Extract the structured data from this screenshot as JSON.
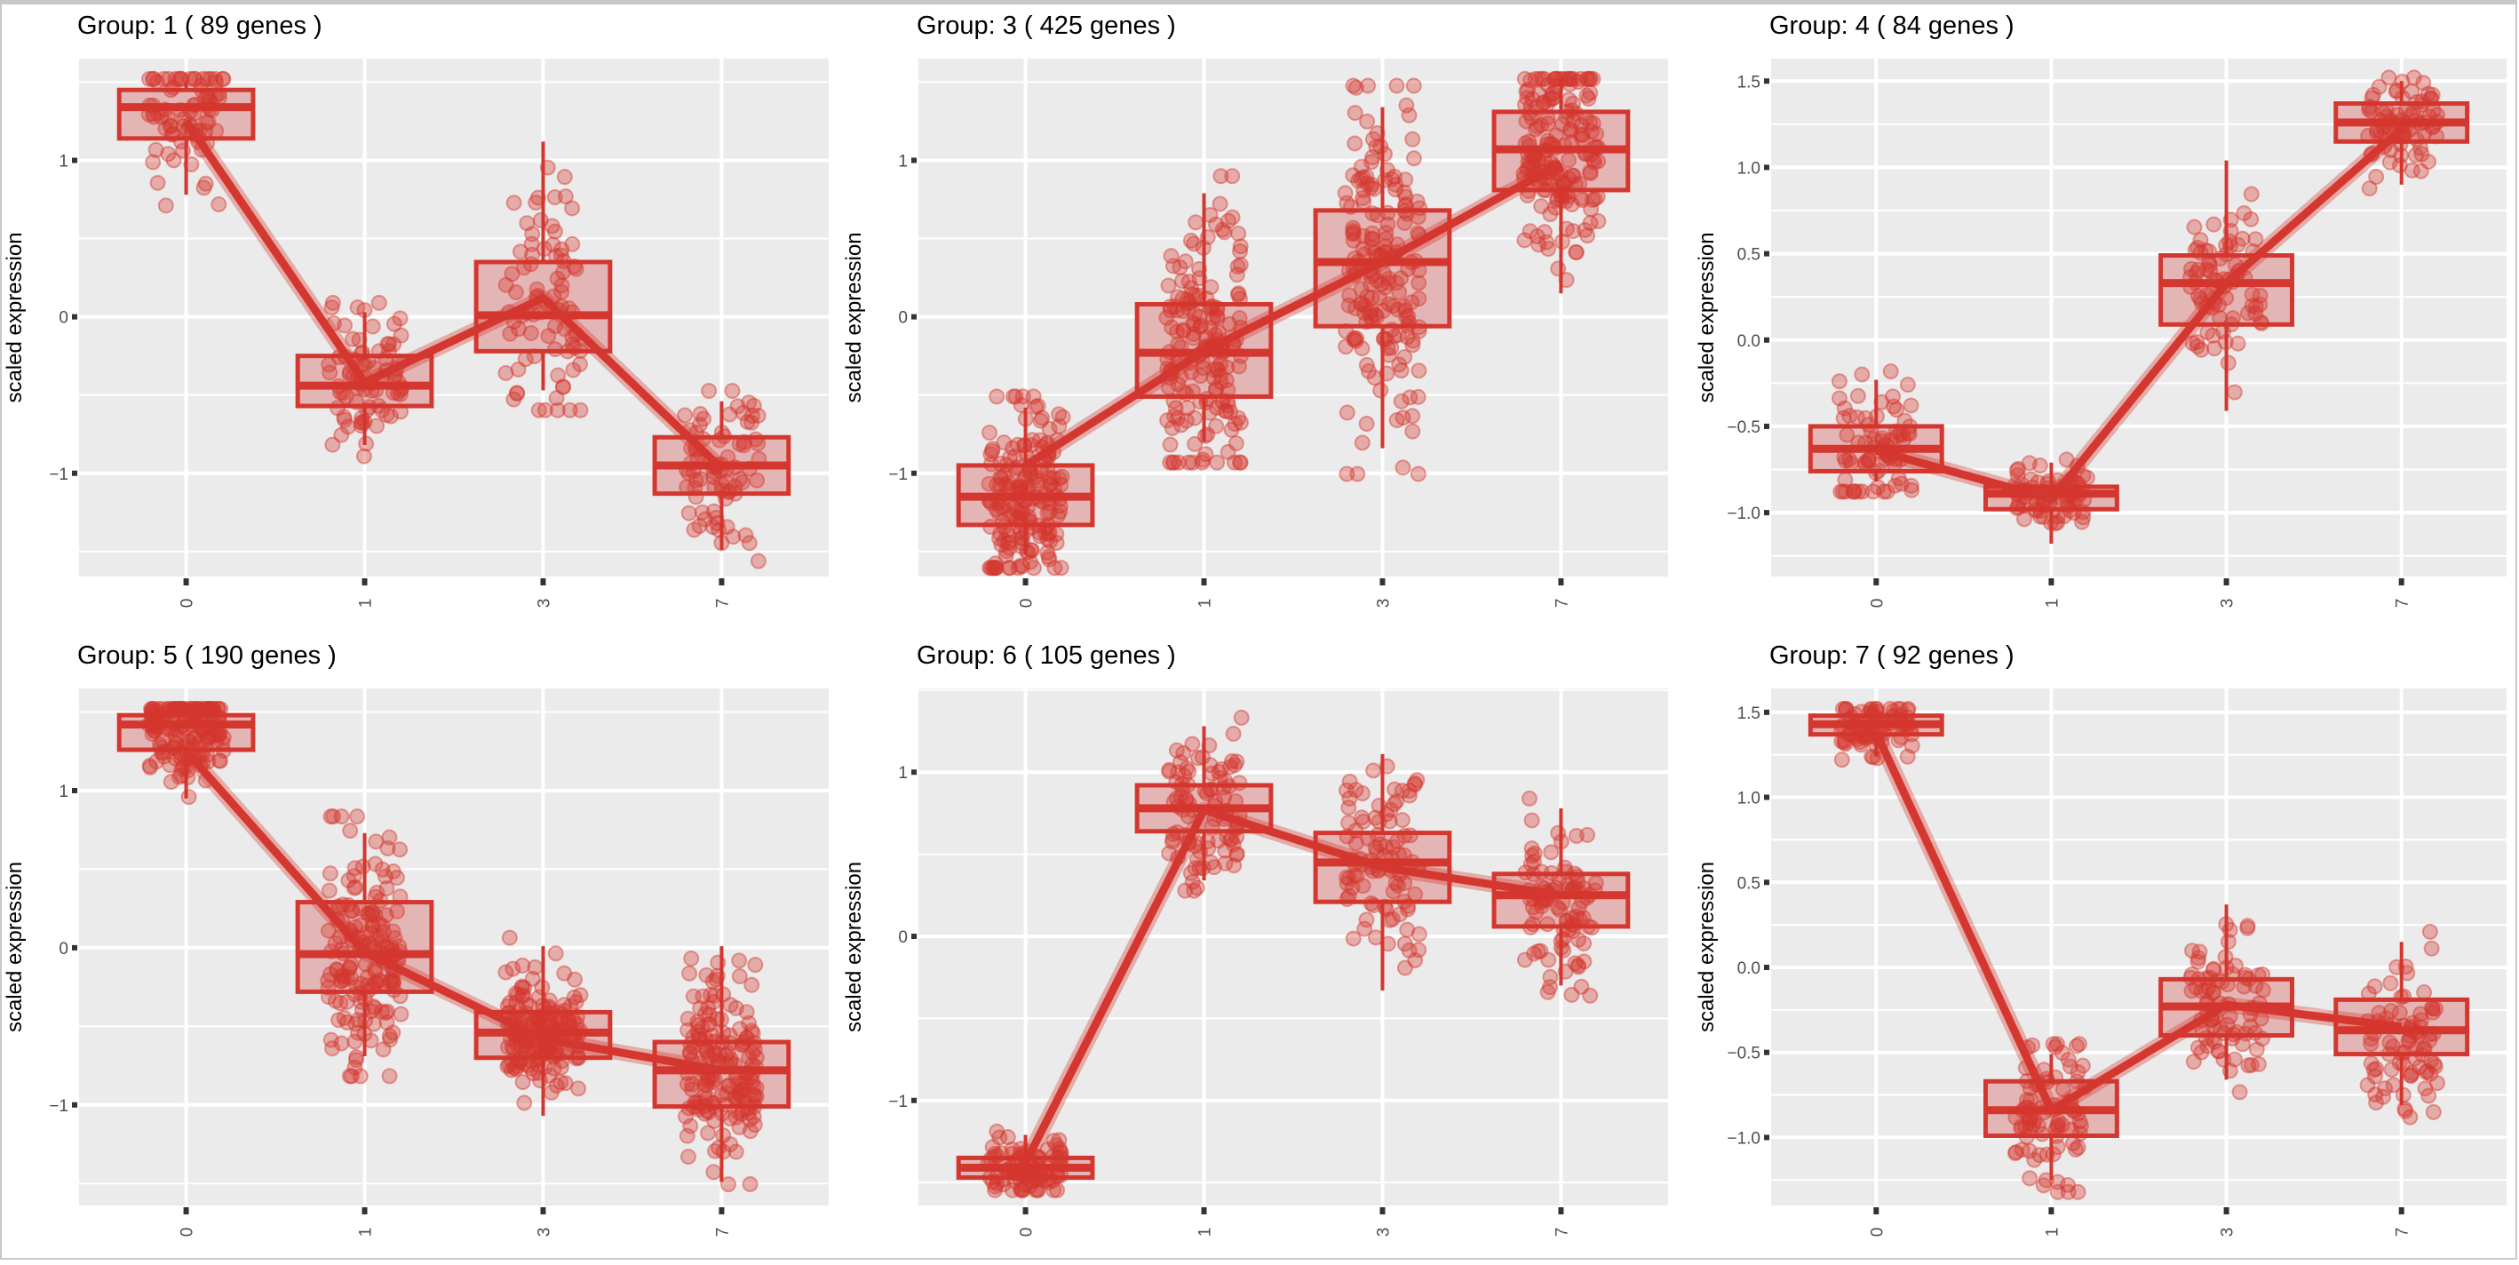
{
  "chart_data": [
    {
      "type": "boxplot",
      "title": "Group: 1 ( 89  genes )",
      "group": "1",
      "n_genes": 89,
      "xlabel": "",
      "ylabel": "scaled expression",
      "categories": [
        "0",
        "1",
        "3",
        "7"
      ],
      "yticks": [
        -1,
        0,
        1
      ],
      "ytick_labels": [
        "−1",
        "0",
        "1"
      ],
      "ylim": [
        -1.66,
        1.65
      ],
      "grid": true,
      "boxes": [
        {
          "x": "0",
          "whisker_low": 0.78,
          "q1": 1.14,
          "median": 1.34,
          "q3": 1.45,
          "whisker_high": 1.5
        },
        {
          "x": "1",
          "whisker_low": -0.82,
          "q1": -0.57,
          "median": -0.44,
          "q3": -0.25,
          "whisker_high": 0.03
        },
        {
          "x": "3",
          "whisker_low": -0.47,
          "q1": -0.22,
          "median": 0.01,
          "q3": 0.35,
          "whisker_high": 1.12
        },
        {
          "x": "7",
          "whisker_low": -1.49,
          "q1": -1.13,
          "median": -0.95,
          "q3": -0.77,
          "whisker_high": -0.54
        }
      ],
      "trend": [
        1.25,
        -0.42,
        0.12,
        -0.97
      ]
    },
    {
      "type": "boxplot",
      "title": "Group: 3 ( 425  genes )",
      "group": "3",
      "n_genes": 425,
      "xlabel": "",
      "ylabel": "scaled expression",
      "categories": [
        "0",
        "1",
        "3",
        "7"
      ],
      "yticks": [
        -1,
        0,
        1
      ],
      "ytick_labels": [
        "−1",
        "0",
        "1"
      ],
      "ylim": [
        -1.66,
        1.65
      ],
      "grid": true,
      "boxes": [
        {
          "x": "0",
          "whisker_low": -1.52,
          "q1": -1.33,
          "median": -1.15,
          "q3": -0.95,
          "whisker_high": -0.58
        },
        {
          "x": "1",
          "whisker_low": -0.8,
          "q1": -0.51,
          "median": -0.23,
          "q3": 0.08,
          "whisker_high": 0.79
        },
        {
          "x": "3",
          "whisker_low": -0.84,
          "q1": -0.06,
          "median": 0.35,
          "q3": 0.68,
          "whisker_high": 1.34
        },
        {
          "x": "7",
          "whisker_low": 0.15,
          "q1": 0.81,
          "median": 1.07,
          "q3": 1.31,
          "whisker_high": 1.52
        }
      ],
      "trend": [
        -0.95,
        -0.22,
        0.35,
        0.98
      ]
    },
    {
      "type": "boxplot",
      "title": "Group: 4 ( 84  genes )",
      "group": "4",
      "n_genes": 84,
      "xlabel": "",
      "ylabel": "scaled expression",
      "categories": [
        "0",
        "1",
        "3",
        "7"
      ],
      "yticks": [
        -1.0,
        -0.5,
        0.0,
        0.5,
        1.0,
        1.5
      ],
      "ytick_labels": [
        "−1.0",
        "−0.5",
        "0.0",
        "0.5",
        "1.0",
        "1.5"
      ],
      "ylim": [
        -1.37,
        1.63
      ],
      "grid": true,
      "boxes": [
        {
          "x": "0",
          "whisker_low": -0.82,
          "q1": -0.76,
          "median": -0.63,
          "q3": -0.5,
          "whisker_high": -0.23
        },
        {
          "x": "1",
          "whisker_low": -1.18,
          "q1": -0.98,
          "median": -0.89,
          "q3": -0.85,
          "whisker_high": -0.71
        },
        {
          "x": "3",
          "whisker_low": -0.41,
          "q1": 0.09,
          "median": 0.33,
          "q3": 0.49,
          "whisker_high": 1.04
        },
        {
          "x": "7",
          "whisker_low": 0.9,
          "q1": 1.15,
          "median": 1.26,
          "q3": 1.37,
          "whisker_high": 1.5
        }
      ],
      "trend": [
        -0.64,
        -0.92,
        0.33,
        1.22
      ]
    },
    {
      "type": "boxplot",
      "title": "Group: 5 ( 190  genes )",
      "group": "5",
      "n_genes": 190,
      "xlabel": "",
      "ylabel": "scaled expression",
      "categories": [
        "0",
        "1",
        "3",
        "7"
      ],
      "yticks": [
        -1,
        0,
        1
      ],
      "ytick_labels": [
        "−1",
        "0",
        "1"
      ],
      "ylim": [
        -1.64,
        1.65
      ],
      "grid": true,
      "boxes": [
        {
          "x": "0",
          "whisker_low": 0.95,
          "q1": 1.26,
          "median": 1.42,
          "q3": 1.48,
          "whisker_high": 1.52
        },
        {
          "x": "1",
          "whisker_low": -0.69,
          "q1": -0.28,
          "median": -0.04,
          "q3": 0.29,
          "whisker_high": 0.73
        },
        {
          "x": "3",
          "whisker_low": -1.07,
          "q1": -0.7,
          "median": -0.54,
          "q3": -0.41,
          "whisker_high": 0.01
        },
        {
          "x": "7",
          "whisker_low": -1.49,
          "q1": -1.01,
          "median": -0.78,
          "q3": -0.6,
          "whisker_high": 0.01
        }
      ],
      "trend": [
        1.25,
        -0.03,
        -0.58,
        -0.78
      ]
    },
    {
      "type": "boxplot",
      "title": "Group: 6 ( 105  genes )",
      "group": "6",
      "n_genes": 105,
      "xlabel": "",
      "ylabel": "scaled expression",
      "categories": [
        "0",
        "1",
        "3",
        "7"
      ],
      "yticks": [
        -1,
        0,
        1
      ],
      "ytick_labels": [
        "−1",
        "0",
        "1"
      ],
      "ylim": [
        -1.64,
        1.51
      ],
      "grid": true,
      "boxes": [
        {
          "x": "0",
          "whisker_low": -1.52,
          "q1": -1.47,
          "median": -1.41,
          "q3": -1.35,
          "whisker_high": -1.21
        },
        {
          "x": "1",
          "whisker_low": 0.34,
          "q1": 0.64,
          "median": 0.78,
          "q3": 0.92,
          "whisker_high": 1.28
        },
        {
          "x": "3",
          "whisker_low": -0.33,
          "q1": 0.21,
          "median": 0.45,
          "q3": 0.63,
          "whisker_high": 1.11
        },
        {
          "x": "7",
          "whisker_low": -0.3,
          "q1": 0.06,
          "median": 0.25,
          "q3": 0.38,
          "whisker_high": 0.78
        }
      ],
      "trend": [
        -1.38,
        0.77,
        0.42,
        0.25
      ]
    },
    {
      "type": "boxplot",
      "title": "Group: 7 ( 92  genes )",
      "group": "7",
      "n_genes": 92,
      "xlabel": "",
      "ylabel": "scaled expression",
      "categories": [
        "0",
        "1",
        "3",
        "7"
      ],
      "yticks": [
        -1.0,
        -0.5,
        0.0,
        0.5,
        1.0,
        1.5
      ],
      "ytick_labels": [
        "−1.0",
        "−0.5",
        "0.0",
        "0.5",
        "1.0",
        "1.5"
      ],
      "ylim": [
        -1.4,
        1.64
      ],
      "grid": true,
      "boxes": [
        {
          "x": "0",
          "whisker_low": 1.24,
          "q1": 1.37,
          "median": 1.43,
          "q3": 1.48,
          "whisker_high": 1.5
        },
        {
          "x": "1",
          "whisker_low": -1.25,
          "q1": -0.99,
          "median": -0.84,
          "q3": -0.67,
          "whisker_high": -0.51
        },
        {
          "x": "3",
          "whisker_low": -0.66,
          "q1": -0.4,
          "median": -0.23,
          "q3": -0.07,
          "whisker_high": 0.37
        },
        {
          "x": "7",
          "whisker_low": -0.81,
          "q1": -0.51,
          "median": -0.37,
          "q3": -0.19,
          "whisker_high": 0.15
        }
      ],
      "trend": [
        1.38,
        -0.84,
        -0.22,
        -0.35
      ]
    }
  ],
  "colors": {
    "accent": "#d4372f",
    "box_fill": "#e3b6b5",
    "panel_bg": "#ebebeb",
    "grid": "#ffffff",
    "tick_text": "#4d4d4d"
  }
}
